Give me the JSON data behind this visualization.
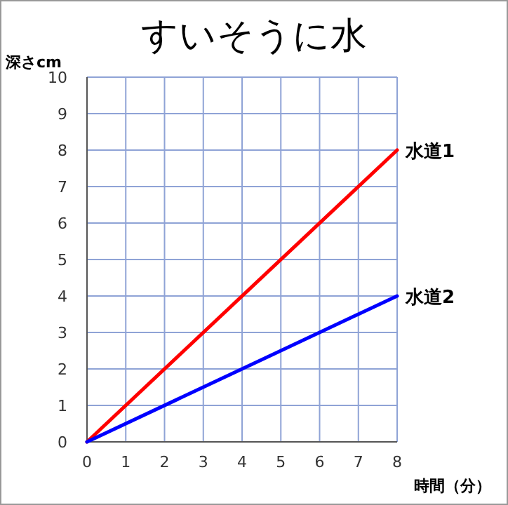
{
  "chart_data": {
    "type": "line",
    "title": "すいそうに水",
    "xlabel": "時間（分）",
    "ylabel": "深さcm",
    "x": [
      0,
      8
    ],
    "series": [
      {
        "name": "水道1",
        "color": "#ff0000",
        "values": [
          0,
          8
        ]
      },
      {
        "name": "水道2",
        "color": "#0000ff",
        "values": [
          0,
          4
        ]
      }
    ],
    "xlim": [
      0,
      8
    ],
    "ylim": [
      0,
      10
    ],
    "xticks": [
      0,
      1,
      2,
      3,
      4,
      5,
      6,
      7,
      8
    ],
    "yticks": [
      0,
      1,
      2,
      3,
      4,
      5,
      6,
      7,
      8,
      9,
      10
    ],
    "grid": true
  }
}
